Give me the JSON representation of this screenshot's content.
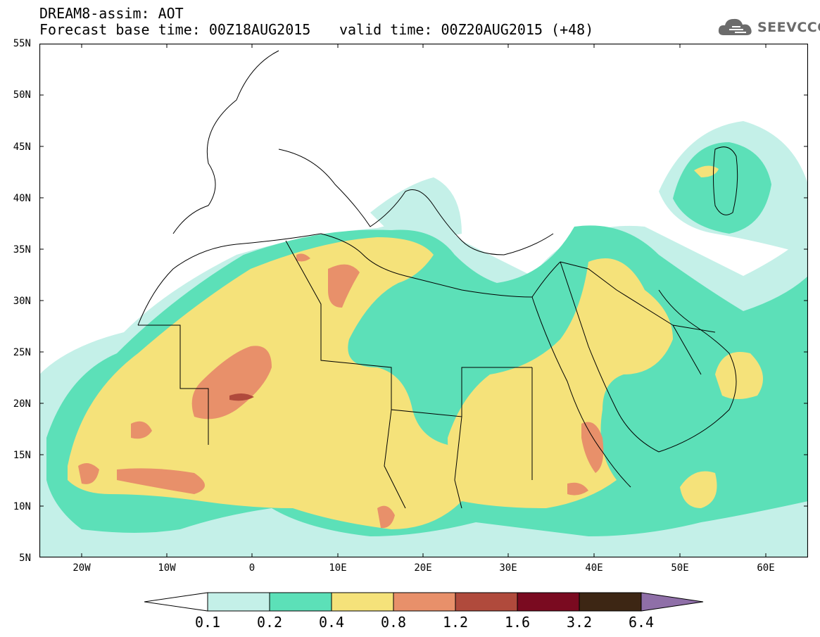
{
  "title": {
    "line1": "DREAM8-assim: AOT",
    "line2": "Forecast base time: 00Z18AUG2015",
    "valid": "valid time: 00Z20AUG2015 (+48)"
  },
  "logo": {
    "text": "SEEVCCC",
    "icon": "cloud-icon",
    "color": "#6b6b6b"
  },
  "axes": {
    "lat_labels": [
      "55N",
      "50N",
      "45N",
      "40N",
      "35N",
      "30N",
      "25N",
      "20N",
      "15N",
      "10N",
      "5N"
    ],
    "lon_labels": [
      "20W",
      "10W",
      "0",
      "10E",
      "20E",
      "30E",
      "40E",
      "50E",
      "60E"
    ]
  },
  "colorbar": {
    "labels": [
      "0.1",
      "0.2",
      "0.4",
      "0.8",
      "1.2",
      "1.6",
      "3.2",
      "6.4"
    ],
    "colors": [
      "#ffffff",
      "#c4f0e8",
      "#5ce0b8",
      "#f5e27a",
      "#e8906a",
      "#b04a3c",
      "#7a0a20",
      "#3d2614",
      "#8f6fa8"
    ]
  },
  "map": {
    "variable": "AOT",
    "extent": "25W-65E, 5N-55N"
  }
}
